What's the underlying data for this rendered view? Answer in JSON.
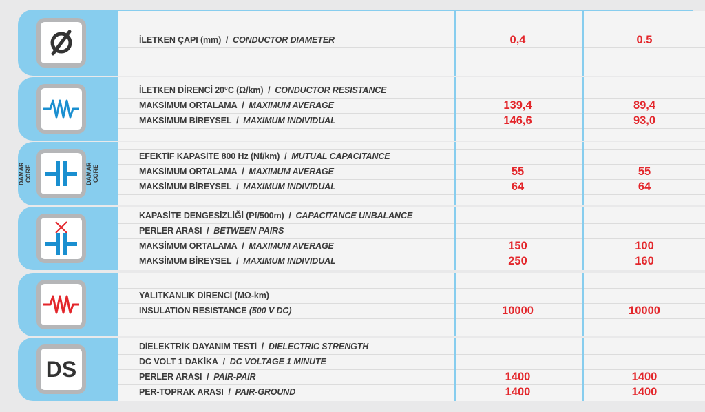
{
  "colors": {
    "panel": "#87cdee",
    "value": "#e3262b",
    "label": "#3a3a3a",
    "row_bg": "#f4f4f4"
  },
  "sections": [
    {
      "icon": "diameter-icon",
      "rows": [
        {
          "tr": "İLETKEN ÇAPI (mm)",
          "sep": "/",
          "en": "CONDUCTOR DIAMETER",
          "v1": "0,4",
          "v2": "0.5"
        }
      ]
    },
    {
      "icon": "resistor-blue-icon",
      "rows": [
        {
          "tr": "İLETKEN DİRENCİ 20°C (Ω/km)",
          "sep": "/",
          "en": "CONDUCTOR RESISTANCE",
          "v1": "",
          "v2": ""
        },
        {
          "tr": "MAKSİMUM ORTALAMA",
          "sep": "/",
          "en": "MAXIMUM AVERAGE",
          "v1": "139,4",
          "v2": "89,4"
        },
        {
          "tr": "MAKSİMUM BİREYSEL",
          "sep": "/",
          "en": "MAXIMUM INDIVIDUAL",
          "v1": "146,6",
          "v2": "93,0"
        }
      ]
    },
    {
      "icon": "capacitor-icon",
      "side_left": [
        "DAMAR",
        "CORE"
      ],
      "side_right": [
        "DAMAR",
        "CORE"
      ],
      "rows": [
        {
          "tr": "EFEKTİF KAPASİTE 800 Hz (Nf/km)",
          "sep": "/",
          "en": "MUTUAL CAPACITANCE",
          "v1": "",
          "v2": ""
        },
        {
          "tr": "MAKSİMUM ORTALAMA",
          "sep": "/",
          "en": "MAXIMUM AVERAGE",
          "v1": "55",
          "v2": "55"
        },
        {
          "tr": "MAKSİMUM BİREYSEL",
          "sep": "/",
          "en": "MAXIMUM INDIVIDUAL",
          "v1": "64",
          "v2": "64"
        }
      ]
    },
    {
      "icon": "capacitance-unbalance-icon",
      "rows": [
        {
          "tr": "KAPASİTE DENGESİZLİĞİ (Pf/500m)",
          "sep": "/",
          "en": "CAPACITANCE UNBALANCE",
          "v1": "",
          "v2": ""
        },
        {
          "tr": "PERLER ARASI",
          "sep": "/",
          "en": "BETWEEN PAIRS",
          "v1": "",
          "v2": ""
        },
        {
          "tr": "MAKSİMUM ORTALAMA",
          "sep": "/",
          "en": "MAXIMUM AVERAGE",
          "v1": "150",
          "v2": "100"
        },
        {
          "tr": "MAKSİMUM BİREYSEL",
          "sep": "/",
          "en": "MAXIMUM INDIVIDUAL",
          "v1": "250",
          "v2": "160"
        }
      ]
    },
    {
      "icon": "resistor-red-icon",
      "rows": [
        {
          "tr": "YALITKANLIK DİRENCİ (MΩ-km)",
          "sep": "",
          "en": "",
          "v1": "",
          "v2": ""
        },
        {
          "tr": "INSULATION RESISTANCE",
          "sep": "",
          "en": "(500 V DC)",
          "v1": "10000",
          "v2": "10000"
        }
      ]
    },
    {
      "icon": "ds-icon",
      "icon_text": "DS",
      "rows": [
        {
          "tr": "DİELEKTRİK DAYANIM TESTİ",
          "sep": "/",
          "en": "DIELECTRIC STRENGTH",
          "v1": "",
          "v2": ""
        },
        {
          "tr": "DC VOLT 1 DAKİKA",
          "sep": "/",
          "en": "DC VOLTAGE 1 MINUTE",
          "v1": "",
          "v2": ""
        },
        {
          "tr": "PERLER ARASI",
          "sep": "/",
          "en": "PAIR-PAIR",
          "v1": "1400",
          "v2": "1400"
        },
        {
          "tr": "PER-TOPRAK ARASI",
          "sep": "/",
          "en": "PAIR-GROUND",
          "v1": "1400",
          "v2": "1400"
        }
      ]
    }
  ]
}
